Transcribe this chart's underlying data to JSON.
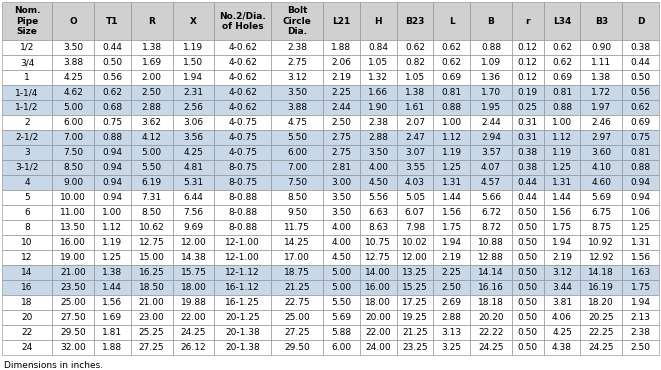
{
  "note": "Dimensions in inches.",
  "columns": [
    "Nom.\nPipe\nSize",
    "O",
    "T1",
    "R",
    "X",
    "No.2/Dia.\nof Holes",
    "Bolt\nCircle\nDia.",
    "L21",
    "H",
    "B23",
    "L",
    "B",
    "r",
    "L34",
    "B3",
    "D"
  ],
  "col_widths": [
    3.0,
    2.5,
    2.2,
    2.5,
    2.5,
    3.4,
    3.1,
    2.2,
    2.2,
    2.2,
    2.2,
    2.5,
    1.9,
    2.2,
    2.5,
    2.2
  ],
  "rows": [
    [
      "1/2",
      "3.50",
      "0.44",
      "1.38",
      "1.19",
      "4-0.62",
      "2.38",
      "1.88",
      "0.84",
      "0.62",
      "0.62",
      "0.88",
      "0.12",
      "0.62",
      "0.90",
      "0.38"
    ],
    [
      "3/4",
      "3.88",
      "0.50",
      "1.69",
      "1.50",
      "4-0.62",
      "2.75",
      "2.06",
      "1.05",
      "0.82",
      "0.62",
      "1.09",
      "0.12",
      "0.62",
      "1.11",
      "0.44"
    ],
    [
      "1",
      "4.25",
      "0.56",
      "2.00",
      "1.94",
      "4-0.62",
      "3.12",
      "2.19",
      "1.32",
      "1.05",
      "0.69",
      "1.36",
      "0.12",
      "0.69",
      "1.38",
      "0.50"
    ],
    [
      "1-1/4",
      "4.62",
      "0.62",
      "2.50",
      "2.31",
      "4-0.62",
      "3.50",
      "2.25",
      "1.66",
      "1.38",
      "0.81",
      "1.70",
      "0.19",
      "0.81",
      "1.72",
      "0.56"
    ],
    [
      "1-1/2",
      "5.00",
      "0.68",
      "2.88",
      "2.56",
      "4-0.62",
      "3.88",
      "2.44",
      "1.90",
      "1.61",
      "0.88",
      "1.95",
      "0.25",
      "0.88",
      "1.97",
      "0.62"
    ],
    [
      "2",
      "6.00",
      "0.75",
      "3.62",
      "3.06",
      "4-0.75",
      "4.75",
      "2.50",
      "2.38",
      "2.07",
      "1.00",
      "2.44",
      "0.31",
      "1.00",
      "2.46",
      "0.69"
    ],
    [
      "2-1/2",
      "7.00",
      "0.88",
      "4.12",
      "3.56",
      "4-0.75",
      "5.50",
      "2.75",
      "2.88",
      "2.47",
      "1.12",
      "2.94",
      "0.31",
      "1.12",
      "2.97",
      "0.75"
    ],
    [
      "3",
      "7.50",
      "0.94",
      "5.00",
      "4.25",
      "4-0.75",
      "6.00",
      "2.75",
      "3.50",
      "3.07",
      "1.19",
      "3.57",
      "0.38",
      "1.19",
      "3.60",
      "0.81"
    ],
    [
      "3-1/2",
      "8.50",
      "0.94",
      "5.50",
      "4.81",
      "8-0.75",
      "7.00",
      "2.81",
      "4.00",
      "3.55",
      "1.25",
      "4.07",
      "0.38",
      "1.25",
      "4.10",
      "0.88"
    ],
    [
      "4",
      "9.00",
      "0.94",
      "6.19",
      "5.31",
      "8-0.75",
      "7.50",
      "3.00",
      "4.50",
      "4.03",
      "1.31",
      "4.57",
      "0.44",
      "1.31",
      "4.60",
      "0.94"
    ],
    [
      "5",
      "10.00",
      "0.94",
      "7.31",
      "6.44",
      "8-0.88",
      "8.50",
      "3.50",
      "5.56",
      "5.05",
      "1.44",
      "5.66",
      "0.44",
      "1.44",
      "5.69",
      "0.94"
    ],
    [
      "6",
      "11.00",
      "1.00",
      "8.50",
      "7.56",
      "8-0.88",
      "9.50",
      "3.50",
      "6.63",
      "6.07",
      "1.56",
      "6.72",
      "0.50",
      "1.56",
      "6.75",
      "1.06"
    ],
    [
      "8",
      "13.50",
      "1.12",
      "10.62",
      "9.69",
      "8-0.88",
      "11.75",
      "4.00",
      "8.63",
      "7.98",
      "1.75",
      "8.72",
      "0.50",
      "1.75",
      "8.75",
      "1.25"
    ],
    [
      "10",
      "16.00",
      "1.19",
      "12.75",
      "12.00",
      "12-1.00",
      "14.25",
      "4.00",
      "10.75",
      "10.02",
      "1.94",
      "10.88",
      "0.50",
      "1.94",
      "10.92",
      "1.31"
    ],
    [
      "12",
      "19.00",
      "1.25",
      "15.00",
      "14.38",
      "12-1.00",
      "17.00",
      "4.50",
      "12.75",
      "12.00",
      "2.19",
      "12.88",
      "0.50",
      "2.19",
      "12.92",
      "1.56"
    ],
    [
      "14",
      "21.00",
      "1.38",
      "16.25",
      "15.75",
      "12-1.12",
      "18.75",
      "5.00",
      "14.00",
      "13.25",
      "2.25",
      "14.14",
      "0.50",
      "3.12",
      "14.18",
      "1.63"
    ],
    [
      "16",
      "23.50",
      "1.44",
      "18.50",
      "18.00",
      "16-1.12",
      "21.25",
      "5.00",
      "16.00",
      "15.25",
      "2.50",
      "16.16",
      "0.50",
      "3.44",
      "16.19",
      "1.75"
    ],
    [
      "18",
      "25.00",
      "1.56",
      "21.00",
      "19.88",
      "16-1.25",
      "22.75",
      "5.50",
      "18.00",
      "17.25",
      "2.69",
      "18.18",
      "0.50",
      "3.81",
      "18.20",
      "1.94"
    ],
    [
      "20",
      "27.50",
      "1.69",
      "23.00",
      "22.00",
      "20-1.25",
      "25.00",
      "5.69",
      "20.00",
      "19.25",
      "2.88",
      "20.20",
      "0.50",
      "4.06",
      "20.25",
      "2.13"
    ],
    [
      "22",
      "29.50",
      "1.81",
      "25.25",
      "24.25",
      "20-1.38",
      "27.25",
      "5.88",
      "22.00",
      "21.25",
      "3.13",
      "22.22",
      "0.50",
      "4.25",
      "22.25",
      "2.38"
    ],
    [
      "24",
      "32.00",
      "1.88",
      "27.25",
      "26.12",
      "20-1.38",
      "29.50",
      "6.00",
      "24.00",
      "23.25",
      "3.25",
      "24.25",
      "0.50",
      "4.38",
      "24.25",
      "2.50"
    ]
  ],
  "shaded_rows": [
    3,
    4,
    6,
    7,
    8,
    9,
    15,
    16
  ],
  "header_bg": "#d0d0d0",
  "shaded_bg": "#c8d8e8",
  "normal_bg": "#ffffff",
  "border_color": "#888888",
  "text_color": "#000000",
  "header_font_size": 6.5,
  "cell_font_size": 6.5,
  "note_font_size": 6.5
}
